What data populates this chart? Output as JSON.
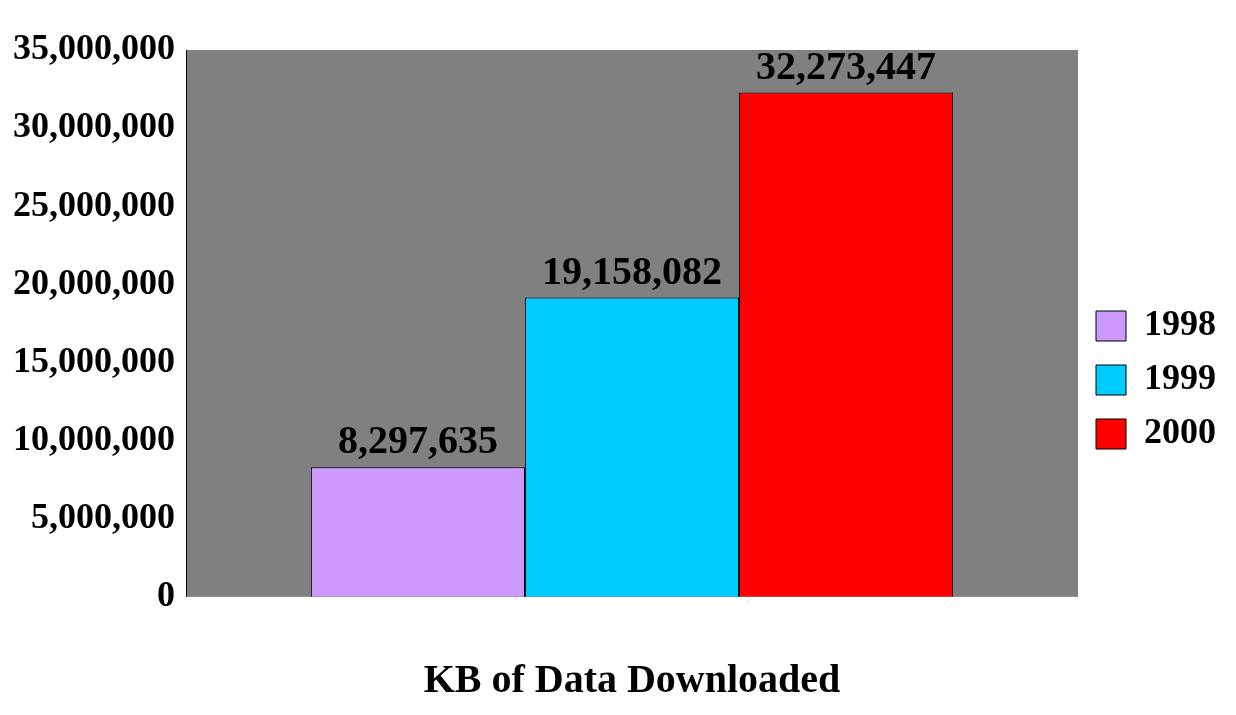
{
  "chart_data": {
    "type": "bar",
    "xlabel": "KB of Data Downloaded",
    "categories": [
      null
    ],
    "series": [
      {
        "name": "1998",
        "color": "#cc99ff",
        "values": [
          8297635
        ],
        "value_labels": [
          "8,297,635"
        ]
      },
      {
        "name": "1999",
        "color": "#00ccff",
        "values": [
          19158082
        ],
        "value_labels": [
          "19,158,082"
        ]
      },
      {
        "name": "2000",
        "color": "#ff0000",
        "values": [
          32273447
        ],
        "value_labels": [
          "32,273,447"
        ]
      }
    ],
    "ylim": [
      0,
      35000000
    ],
    "yticks": [
      {
        "value": 0,
        "label": "0"
      },
      {
        "value": 5000000,
        "label": "5,000,000"
      },
      {
        "value": 10000000,
        "label": "10,000,000"
      },
      {
        "value": 15000000,
        "label": "15,000,000"
      },
      {
        "value": 20000000,
        "label": "20,000,000"
      },
      {
        "value": 25000000,
        "label": "25,000,000"
      },
      {
        "value": 30000000,
        "label": "30,000,000"
      },
      {
        "value": 35000000,
        "label": "35,000,000"
      }
    ],
    "legend": "right",
    "grid": false
  }
}
